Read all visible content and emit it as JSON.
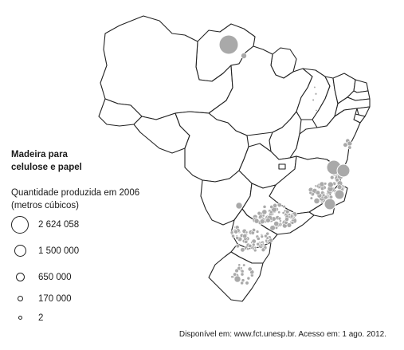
{
  "legend": {
    "title_line1": "Madeira para",
    "title_line2": "celulose e papel",
    "subtitle_line1": "Quantidade produzida em 2006",
    "subtitle_line2": "(metros cúbicos)",
    "items": [
      {
        "label": "2 624 058",
        "value": 2624058
      },
      {
        "label": "1 500 000",
        "value": 1500000
      },
      {
        "label": "650 000",
        "value": 650000
      },
      {
        "label": "170 000",
        "value": 170000
      },
      {
        "label": "2",
        "value": 2
      }
    ]
  },
  "source": "Disponível em: www.fct.unesp.br. Acesso em: 1 ago. 2012.",
  "colors": {
    "symbol_fill": "#a9a9a9",
    "outline": "#222222"
  }
}
